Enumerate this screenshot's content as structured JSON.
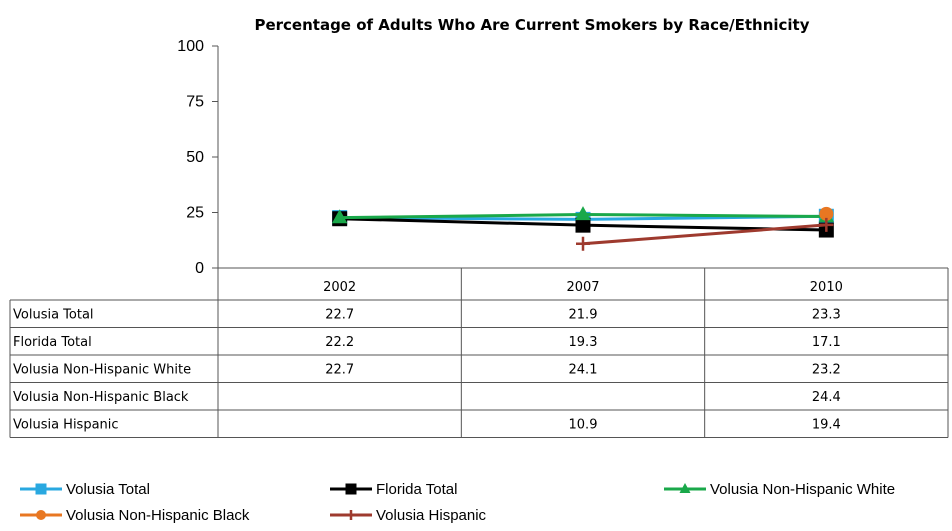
{
  "chart_data": {
    "type": "line",
    "title": "Percentage of Adults Who Are Current Smokers by Race/Ethnicity",
    "categories": [
      "2002",
      "2007",
      "2010"
    ],
    "ylim": [
      0,
      100
    ],
    "yticks": [
      0,
      25,
      50,
      75,
      100
    ],
    "grid": false,
    "legend_position": "bottom",
    "data_table": true,
    "series": [
      {
        "name": "Volusia Total",
        "values": [
          22.7,
          21.9,
          23.3
        ],
        "display": [
          "22.7",
          "21.9",
          "23.3"
        ],
        "color": "#29a8e0",
        "marker": "square"
      },
      {
        "name": "Florida Total",
        "values": [
          22.2,
          19.3,
          17.1
        ],
        "display": [
          "22.2",
          "19.3",
          "17.1"
        ],
        "color": "#000000",
        "marker": "square"
      },
      {
        "name": "Volusia Non-Hispanic White",
        "values": [
          22.7,
          24.1,
          23.2
        ],
        "display": [
          "22.7",
          "24.1",
          "23.2"
        ],
        "color": "#1aa84a",
        "marker": "triangle"
      },
      {
        "name": "Volusia Non-Hispanic Black",
        "values": [
          null,
          null,
          24.4
        ],
        "display": [
          "",
          "",
          "24.4"
        ],
        "color": "#e87722",
        "marker": "circle"
      },
      {
        "name": "Volusia Hispanic",
        "values": [
          null,
          10.9,
          19.4
        ],
        "display": [
          "",
          "10.9",
          "19.4"
        ],
        "color": "#9e3a2e",
        "marker": "plus"
      }
    ]
  }
}
